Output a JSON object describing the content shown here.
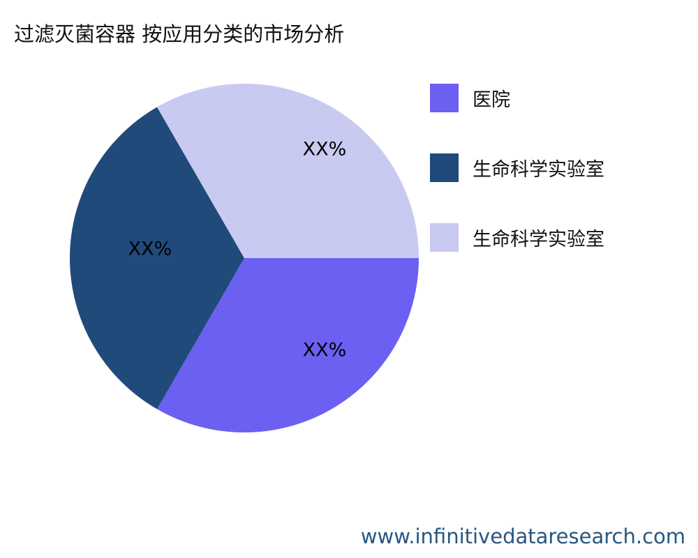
{
  "title": "过滤灭菌容器 按应用分类的市场分析",
  "watermark": "www.infinitivedataresearch.com",
  "chart_data": {
    "type": "pie",
    "title": "过滤灭菌容器 按应用分类的市场分析",
    "slices": [
      {
        "label": "医院",
        "value": 33.33,
        "display": "XX%",
        "color": "#6c60f2"
      },
      {
        "label": "生命科学实验室",
        "value": 33.33,
        "display": "XX%",
        "color": "#1f4a7a"
      },
      {
        "label": "生命科学实验室",
        "value": 33.33,
        "display": "XX%",
        "color": "#c9caf1"
      }
    ],
    "legend_placement": "right",
    "start_angle_deg": 0,
    "direction": "clockwise"
  }
}
